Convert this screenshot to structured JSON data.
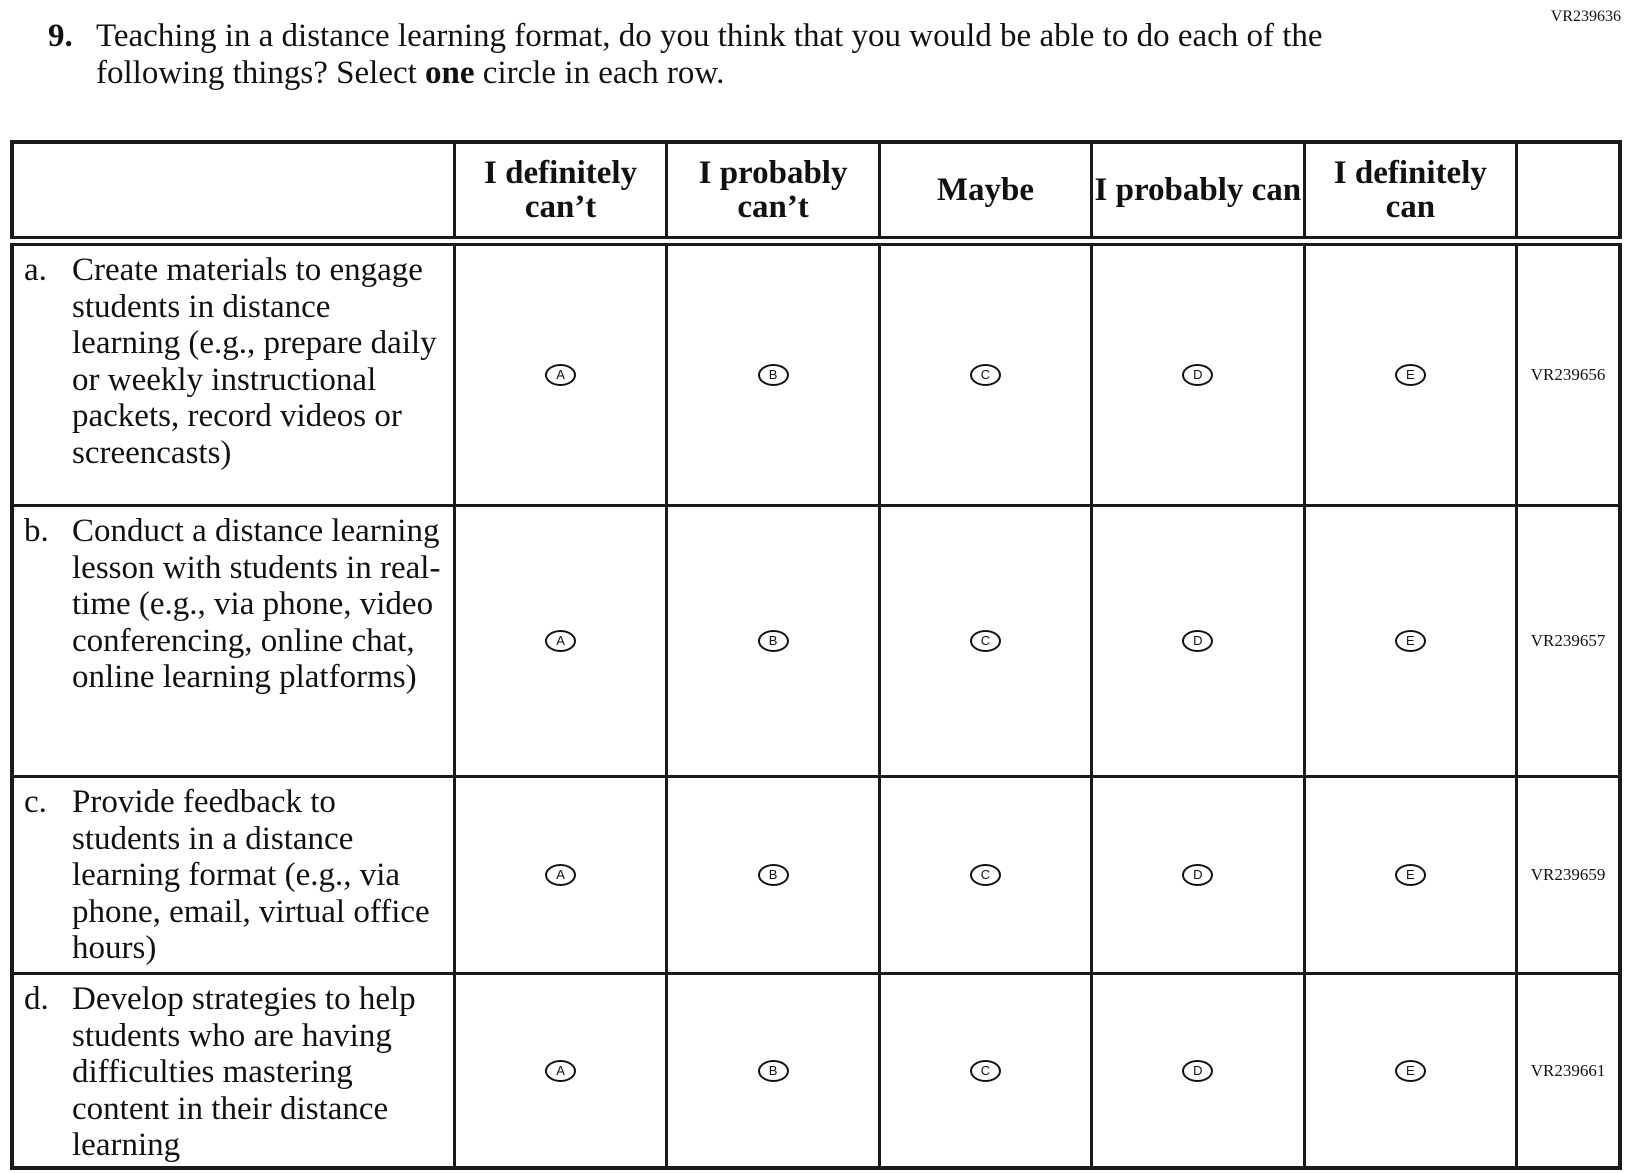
{
  "form_code": "VR239636",
  "question": {
    "number": "9.",
    "text_before": "Teaching in a distance learning format, do you think that you would be able to do each of the following things? Select ",
    "text_bold": "one",
    "text_after": " circle in each row."
  },
  "columns": [
    "I definitely can’t",
    "I probably can’t",
    "Maybe",
    "I probably can",
    "I definitely can"
  ],
  "option_letters": [
    "A",
    "B",
    "C",
    "D",
    "E"
  ],
  "rows": [
    {
      "letter": "a.",
      "text": "Create materials to engage students in distance learning (e.g., prepare daily or weekly instructional packets, record videos or screencasts)",
      "code": "VR239656"
    },
    {
      "letter": "b.",
      "text": "Conduct a distance learning lesson with students in real-time (e.g., via phone, video conferencing, online chat, online learning platforms)",
      "code": "VR239657"
    },
    {
      "letter": "c.",
      "text": "Provide feedback to students in a distance learning format (e.g., via phone, email, virtual office hours)",
      "code": "VR239659"
    },
    {
      "letter": "d.",
      "text": "Develop strategies to help students who are having difficulties mastering content in their distance learning",
      "code": "VR239661"
    }
  ]
}
